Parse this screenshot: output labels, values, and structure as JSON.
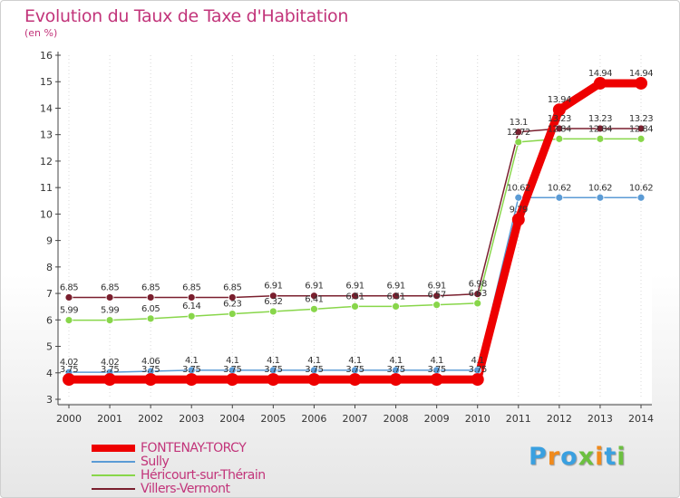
{
  "chart_data": {
    "type": "line",
    "title": "Evolution du Taux de Taxe d'Habitation",
    "ylabel": "(en %)",
    "xlabel": "",
    "ylim": [
      3,
      16
    ],
    "yticks": [
      3,
      4,
      5,
      6,
      7,
      8,
      9,
      10,
      11,
      12,
      13,
      14,
      15,
      16
    ],
    "x": [
      "2000",
      "2001",
      "2002",
      "2003",
      "2004",
      "2005",
      "2006",
      "2007",
      "2008",
      "2009",
      "2010",
      "2011",
      "2012",
      "2013",
      "2014"
    ],
    "series": [
      {
        "name": "Villers-Vermont",
        "color": "#7a1f2e",
        "width": 1.5,
        "marker": 4,
        "values": [
          6.85,
          6.85,
          6.85,
          6.85,
          6.85,
          6.91,
          6.91,
          6.91,
          6.91,
          6.91,
          6.98,
          13.1,
          13.23,
          13.23,
          13.23
        ],
        "labels": [
          "6.85",
          "6.85",
          "6.85",
          "6.85",
          "6.85",
          "6.91",
          "6.91",
          "6.91",
          "6.91",
          "6.91",
          "6.98",
          "13.1",
          "13.23",
          "13.23",
          "13.23"
        ]
      },
      {
        "name": "Héricourt-sur-Thérain",
        "color": "#88d64a",
        "width": 1.5,
        "marker": 4,
        "values": [
          5.99,
          5.99,
          6.05,
          6.14,
          6.23,
          6.32,
          6.41,
          6.51,
          6.51,
          6.57,
          6.63,
          12.72,
          12.84,
          12.84,
          12.84
        ],
        "labels": [
          "5.99",
          "5.99",
          "6.05",
          "6.14",
          "6.23",
          "6.32",
          "6.41",
          "6.51",
          "6.51",
          "6.57",
          "6.63",
          "12.72",
          "12.84",
          "12.84",
          "12.84"
        ]
      },
      {
        "name": "Sully",
        "color": "#5b9bd5",
        "width": 1.5,
        "marker": 4,
        "values": [
          4.02,
          4.02,
          4.06,
          4.1,
          4.1,
          4.1,
          4.1,
          4.1,
          4.1,
          4.1,
          4.1,
          10.62,
          10.62,
          10.62,
          10.62
        ],
        "labels": [
          "4.02",
          "4.02",
          "4.06",
          "4.1",
          "4.1",
          "4.1",
          "4.1",
          "4.1",
          "4.1",
          "4.1",
          "4.1",
          "10.62",
          "10.62",
          "10.62",
          "10.62"
        ]
      },
      {
        "name": "FONTENAY-TORCY",
        "color": "#ee0000",
        "width": 9,
        "marker": 7,
        "values": [
          3.75,
          3.75,
          3.75,
          3.75,
          3.75,
          3.75,
          3.75,
          3.75,
          3.75,
          3.75,
          3.75,
          9.79,
          13.94,
          14.94,
          14.94
        ],
        "labels": [
          "3.75",
          "3.75",
          "3.75",
          "3.75",
          "3.75",
          "3.75",
          "3.75",
          "3.75",
          "3.75",
          "3.75",
          "3.75",
          "9.79",
          "13.94",
          "14.94",
          "14.94"
        ]
      }
    ],
    "legend": [
      "FONTENAY-TORCY",
      "Sully",
      "Héricourt-sur-Thérain",
      "Villers-Vermont"
    ]
  },
  "brand": {
    "logo_letters": [
      "P",
      "r",
      "o",
      "x",
      "i",
      "t",
      "i"
    ],
    "logo_colors": [
      "#3aa0e0",
      "#f08a1c",
      "#3aa0e0",
      "#6cc040",
      "#f08a1c",
      "#3aa0e0",
      "#6cc040"
    ]
  }
}
